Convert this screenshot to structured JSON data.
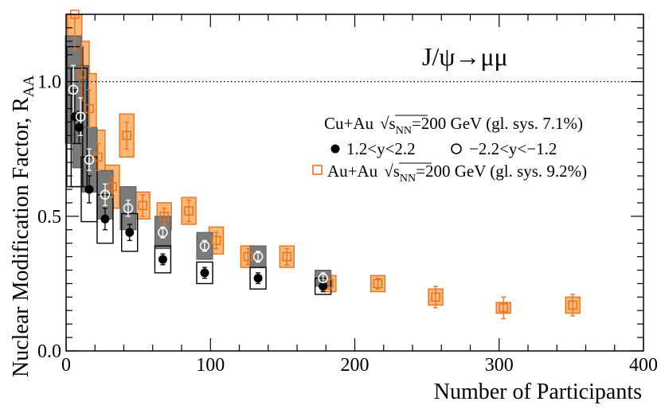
{
  "chart_data": {
    "type": "scatter",
    "title": "",
    "process_label": "J/ψ→μμ",
    "xlabel": "Number of Participants",
    "ylabel": "Nuclear Modification Factor, R_AA",
    "ylabel_main": "Nuclear Modification Factor, R",
    "ylabel_sub": "AA",
    "xlim": [
      0,
      400
    ],
    "ylim": [
      0,
      1.25
    ],
    "x_ticks": [
      0,
      100,
      200,
      300,
      400
    ],
    "x_tick_labels": [
      "0",
      "100",
      "200",
      "300",
      "400"
    ],
    "y_ticks": [
      0,
      0.5,
      1.0
    ],
    "y_tick_labels": [
      "0.0",
      "0.5",
      "1.0"
    ],
    "reference_line": 1.0,
    "legend": {
      "cuau_title_pre": "Cu+Au",
      "cuau_title_post": "=200 GeV (gl. sys. 7.1%)",
      "sqrt_s": "s",
      "sqrt_sub": "NN",
      "forward_label": "1.2<y<2.2",
      "backward_label": "−2.2<y<−1.2",
      "auau_pre": "Au+Au",
      "auau_post": "=200 GeV (gl. sys. 9.2%)"
    },
    "series": [
      {
        "name": "Au+Au",
        "color": "#e8731e",
        "fill": "#f9b877",
        "marker": "open-square",
        "points": [
          {
            "x": 6,
            "y": 1.25,
            "err": 0.13,
            "sys": 0.16
          },
          {
            "x": 11,
            "y": 1.03,
            "err": 0.1,
            "sys": 0.12
          },
          {
            "x": 16,
            "y": 0.9,
            "err": 0.07,
            "sys": 0.13
          },
          {
            "x": 22,
            "y": 0.72,
            "err": 0.05,
            "sys": 0.1
          },
          {
            "x": 32,
            "y": 0.61,
            "err": 0.04,
            "sys": 0.08
          },
          {
            "x": 42,
            "y": 0.8,
            "err": 0.05,
            "sys": 0.08
          },
          {
            "x": 53,
            "y": 0.54,
            "err": 0.04,
            "sys": 0.05
          },
          {
            "x": 68,
            "y": 0.5,
            "err": 0.03,
            "sys": 0.05
          },
          {
            "x": 85,
            "y": 0.52,
            "err": 0.04,
            "sys": 0.05
          },
          {
            "x": 104,
            "y": 0.41,
            "err": 0.03,
            "sys": 0.05
          },
          {
            "x": 126,
            "y": 0.35,
            "err": 0.03,
            "sys": 0.04
          },
          {
            "x": 153,
            "y": 0.35,
            "err": 0.03,
            "sys": 0.04
          },
          {
            "x": 182,
            "y": 0.25,
            "err": 0.02,
            "sys": 0.03
          },
          {
            "x": 216,
            "y": 0.25,
            "err": 0.02,
            "sys": 0.03
          },
          {
            "x": 256,
            "y": 0.2,
            "err": 0.04,
            "sys": 0.03
          },
          {
            "x": 303,
            "y": 0.16,
            "err": 0.04,
            "sys": 0.02
          },
          {
            "x": 351,
            "y": 0.17,
            "err": 0.04,
            "sys": 0.03
          }
        ]
      },
      {
        "name": "Cu+Au 1.2<y<2.2",
        "color": "#000000",
        "marker": "filled-circle",
        "points": [
          {
            "x": 6,
            "y": 0.87,
            "err": 0.1,
            "sys": 0.26
          },
          {
            "x": 9,
            "y": 0.83,
            "err": 0.06,
            "sys": 0.22
          },
          {
            "x": 16,
            "y": 0.6,
            "err": 0.05,
            "sys": 0.12
          },
          {
            "x": 27,
            "y": 0.49,
            "err": 0.04,
            "sys": 0.09
          },
          {
            "x": 44,
            "y": 0.44,
            "err": 0.03,
            "sys": 0.07
          },
          {
            "x": 67,
            "y": 0.34,
            "err": 0.02,
            "sys": 0.05
          },
          {
            "x": 96,
            "y": 0.29,
            "err": 0.02,
            "sys": 0.04
          },
          {
            "x": 133,
            "y": 0.27,
            "err": 0.02,
            "sys": 0.04
          },
          {
            "x": 178,
            "y": 0.24,
            "err": 0.02,
            "sys": 0.03
          }
        ]
      },
      {
        "name": "Cu+Au −2.2<y<−1.2",
        "color": "#000000",
        "fill": "#7a7a7a",
        "marker": "open-circle",
        "points": [
          {
            "x": 5,
            "y": 0.97,
            "err": 0.09,
            "sys": 0.2
          },
          {
            "x": 10,
            "y": 0.87,
            "err": 0.07,
            "sys": 0.19
          },
          {
            "x": 16,
            "y": 0.71,
            "err": 0.04,
            "sys": 0.12
          },
          {
            "x": 27,
            "y": 0.58,
            "err": 0.04,
            "sys": 0.09
          },
          {
            "x": 43,
            "y": 0.53,
            "err": 0.03,
            "sys": 0.08
          },
          {
            "x": 67,
            "y": 0.44,
            "err": 0.02,
            "sys": 0.06
          },
          {
            "x": 96,
            "y": 0.39,
            "err": 0.02,
            "sys": 0.05
          },
          {
            "x": 133,
            "y": 0.35,
            "err": 0.02,
            "sys": 0.04
          },
          {
            "x": 178,
            "y": 0.27,
            "err": 0.02,
            "sys": 0.03
          }
        ]
      }
    ]
  }
}
